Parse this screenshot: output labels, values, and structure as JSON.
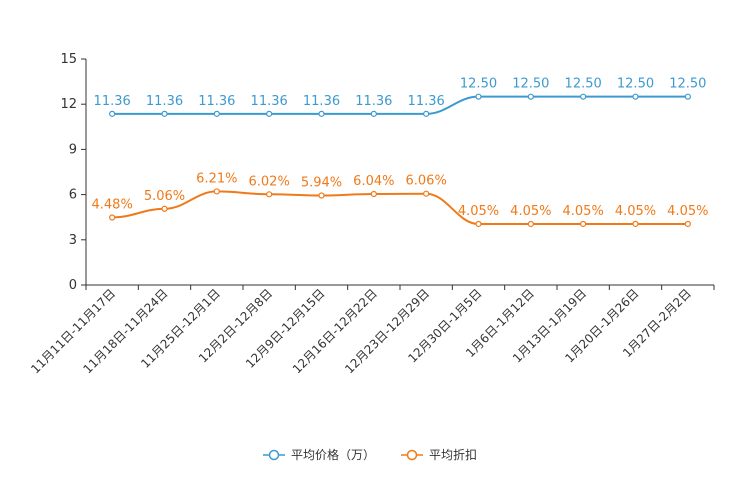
{
  "chart_data": {
    "type": "line",
    "title": "",
    "xlabel": "",
    "ylabel": "",
    "ylim": [
      0,
      15
    ],
    "yticks": [
      0,
      3,
      6,
      9,
      12,
      15
    ],
    "ytick_labels": [
      "0",
      "3",
      "6",
      "9",
      "12",
      "15"
    ],
    "grid": false,
    "legend_position": "bottom-center",
    "categories": [
      "11月11日-11月17日",
      "11月18日-11月24日",
      "11月25日-12月1日",
      "12月2日-12月8日",
      "12月9日-12月15日",
      "12月16日-12月22日",
      "12月23日-12月29日",
      "12月30日-1月5日",
      "1月6日-1月12日",
      "1月13日-1月19日",
      "1月20日-1月26日",
      "1月27日-2月2日"
    ],
    "series": [
      {
        "name": "平均价格（万）",
        "color": "#3c9ad0",
        "values": [
          11.36,
          11.36,
          11.36,
          11.36,
          11.36,
          11.36,
          11.36,
          12.5,
          12.5,
          12.5,
          12.5,
          12.5
        ],
        "labels": [
          "11.36",
          "11.36",
          "11.36",
          "11.36",
          "11.36",
          "11.36",
          "11.36",
          "12.50",
          "12.50",
          "12.50",
          "12.50",
          "12.50"
        ]
      },
      {
        "name": "平均折扣",
        "color": "#f07a1a",
        "values": [
          4.48,
          5.06,
          6.21,
          6.02,
          5.94,
          6.04,
          6.06,
          4.05,
          4.05,
          4.05,
          4.05,
          4.05
        ],
        "labels": [
          "4.48%",
          "5.06%",
          "6.21%",
          "6.02%",
          "5.94%",
          "6.04%",
          "6.06%",
          "4.05%",
          "4.05%",
          "4.05%",
          "4.05%",
          "4.05%"
        ]
      }
    ]
  }
}
